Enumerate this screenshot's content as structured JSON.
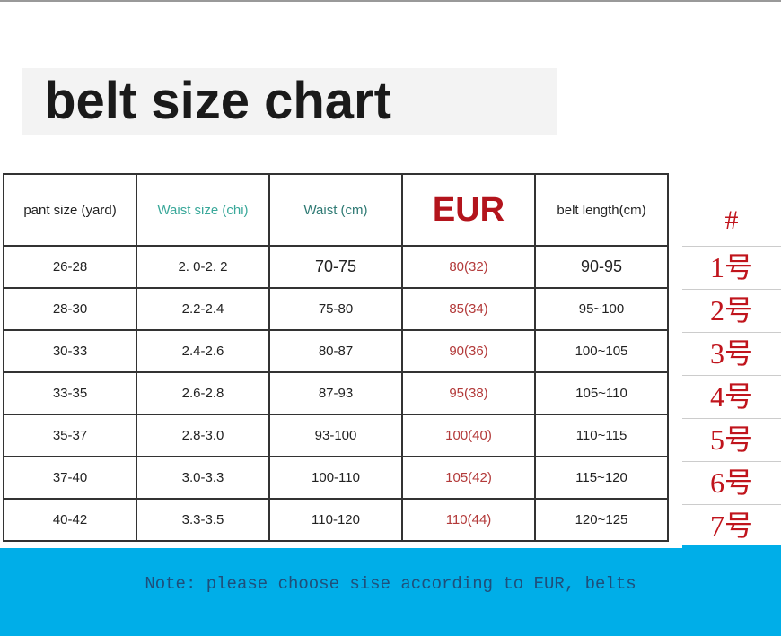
{
  "title": "belt size chart",
  "table": {
    "headers": [
      "pant size (yard)",
      "Waist size (chi)",
      "Waist (cm)",
      "EUR",
      "belt length(cm)",
      "#"
    ],
    "rows": [
      [
        "26-28",
        "2. 0-2. 2",
        "70-75",
        "80(32)",
        "90-95",
        "1号"
      ],
      [
        "28-30",
        "2.2-2.4",
        "75-80",
        "85(34)",
        "95~100",
        "2号"
      ],
      [
        "30-33",
        "2.4-2.6",
        "80-87",
        "90(36)",
        "100~105",
        "3号"
      ],
      [
        "33-35",
        "2.6-2.8",
        "87-93",
        "95(38)",
        "105~110",
        "4号"
      ],
      [
        "35-37",
        "2.8-3.0",
        "93-100",
        "100(40)",
        "110~115",
        "5号"
      ],
      [
        "37-40",
        "3.0-3.3",
        "100-110",
        "105(42)",
        "115~120",
        "6号"
      ],
      [
        "40-42",
        "3.3-3.5",
        "110-120",
        "110(44)",
        "120~125",
        "7号"
      ]
    ]
  },
  "note": "Note: please choose sise according to EUR, belts",
  "colors": {
    "accent_red": "#b3141c",
    "note_bg": "#00aee8",
    "teal": "#3aa89a"
  }
}
